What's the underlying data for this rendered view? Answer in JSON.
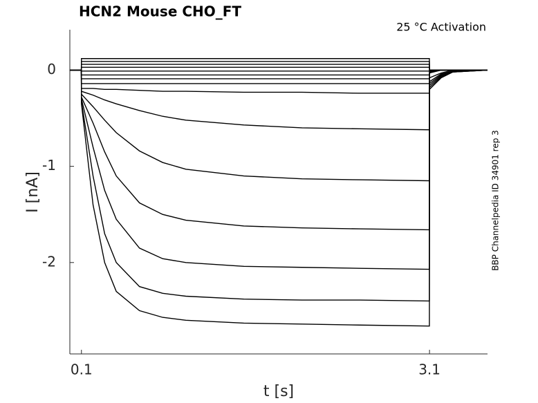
{
  "chart_data": {
    "type": "line",
    "title": "HCN2  Mouse  CHO_FT",
    "annotation": "25 °C  Activation",
    "side_note": "BBP Channelpedia ID 34901 rep 3",
    "xlabel": "t [s]",
    "ylabel": "I [nA]",
    "xlim": [
      0,
      3.6
    ],
    "ylim": [
      -2.95,
      0.42
    ],
    "xticks": [
      0.1,
      3.1
    ],
    "yticks": [
      0,
      -1,
      -2
    ],
    "x": [
      0,
      0.099,
      0.1,
      0.2,
      0.3,
      0.4,
      0.6,
      0.8,
      1.0,
      1.5,
      2.0,
      2.5,
      3.099,
      3.1,
      3.2,
      3.3,
      3.6
    ],
    "series": [
      {
        "color": "#000000",
        "values": [
          0,
          0,
          -0.35,
          -1.4,
          -2.0,
          -2.3,
          -2.5,
          -2.57,
          -2.6,
          -2.63,
          -2.64,
          -2.65,
          -2.66,
          -0.2,
          -0.08,
          -0.02,
          0
        ]
      },
      {
        "color": "#000000",
        "values": [
          0,
          0,
          -0.33,
          -1.1,
          -1.7,
          -2.0,
          -2.25,
          -2.32,
          -2.35,
          -2.38,
          -2.39,
          -2.39,
          -2.4,
          -0.18,
          -0.07,
          -0.02,
          0
        ]
      },
      {
        "color": "#000000",
        "values": [
          0,
          0,
          -0.3,
          -0.8,
          -1.25,
          -1.55,
          -1.85,
          -1.96,
          -2.0,
          -2.04,
          -2.05,
          -2.06,
          -2.07,
          -0.16,
          -0.06,
          -0.02,
          0
        ]
      },
      {
        "color": "#000000",
        "values": [
          0,
          0,
          -0.28,
          -0.55,
          -0.85,
          -1.1,
          -1.38,
          -1.5,
          -1.56,
          -1.62,
          -1.64,
          -1.65,
          -1.66,
          -0.14,
          -0.05,
          -0.01,
          0
        ]
      },
      {
        "color": "#000000",
        "values": [
          0,
          0,
          -0.25,
          -0.38,
          -0.52,
          -0.65,
          -0.84,
          -0.96,
          -1.03,
          -1.1,
          -1.13,
          -1.14,
          -1.15,
          -0.12,
          -0.04,
          -0.01,
          0
        ]
      },
      {
        "color": "#000000",
        "values": [
          0,
          0,
          -0.22,
          -0.26,
          -0.31,
          -0.35,
          -0.42,
          -0.48,
          -0.52,
          -0.57,
          -0.6,
          -0.61,
          -0.62,
          -0.08,
          -0.03,
          0,
          0
        ]
      },
      {
        "color": "#000000",
        "values": [
          0,
          0,
          -0.19,
          -0.19,
          -0.2,
          -0.2,
          -0.21,
          -0.22,
          -0.22,
          -0.23,
          -0.23,
          -0.24,
          -0.24,
          -0.03,
          0,
          0,
          0
        ]
      },
      {
        "color": "#000000",
        "values": [
          0,
          0,
          -0.14,
          -0.14,
          -0.14,
          -0.14,
          -0.14,
          -0.14,
          -0.14,
          -0.14,
          -0.14,
          -0.14,
          -0.14,
          -0.02,
          0,
          0,
          0
        ]
      },
      {
        "color": "#000000",
        "values": [
          0,
          0,
          -0.09,
          -0.09,
          -0.09,
          -0.09,
          -0.09,
          -0.09,
          -0.09,
          -0.09,
          -0.09,
          -0.09,
          -0.09,
          -0.01,
          0,
          0,
          0
        ]
      },
      {
        "color": "#000000",
        "values": [
          0,
          0,
          -0.05,
          -0.05,
          -0.05,
          -0.05,
          -0.05,
          -0.05,
          -0.05,
          -0.05,
          -0.05,
          -0.05,
          -0.05,
          -0.01,
          0,
          0,
          0
        ]
      },
      {
        "color": "#000000",
        "values": [
          0,
          0,
          -0.01,
          -0.01,
          -0.01,
          -0.01,
          -0.01,
          -0.01,
          -0.01,
          -0.01,
          -0.01,
          -0.01,
          -0.01,
          0,
          0,
          0,
          0
        ]
      },
      {
        "color": "#000000",
        "values": [
          0,
          0,
          0.03,
          0.03,
          0.03,
          0.03,
          0.03,
          0.03,
          0.03,
          0.03,
          0.03,
          0.03,
          0.03,
          0,
          0,
          0,
          0
        ]
      },
      {
        "color": "#000000",
        "values": [
          0,
          0,
          0.06,
          0.06,
          0.06,
          0.06,
          0.06,
          0.06,
          0.06,
          0.06,
          0.06,
          0.06,
          0.06,
          0,
          0,
          0,
          0
        ]
      },
      {
        "color": "#000000",
        "values": [
          0,
          0,
          0.09,
          0.09,
          0.09,
          0.09,
          0.09,
          0.09,
          0.09,
          0.09,
          0.09,
          0.09,
          0.09,
          0,
          0,
          0,
          0
        ]
      },
      {
        "color": "#000000",
        "values": [
          0,
          0,
          0.12,
          0.12,
          0.12,
          0.12,
          0.12,
          0.12,
          0.12,
          0.12,
          0.12,
          0.12,
          0.12,
          0,
          0,
          0,
          0
        ]
      }
    ]
  }
}
